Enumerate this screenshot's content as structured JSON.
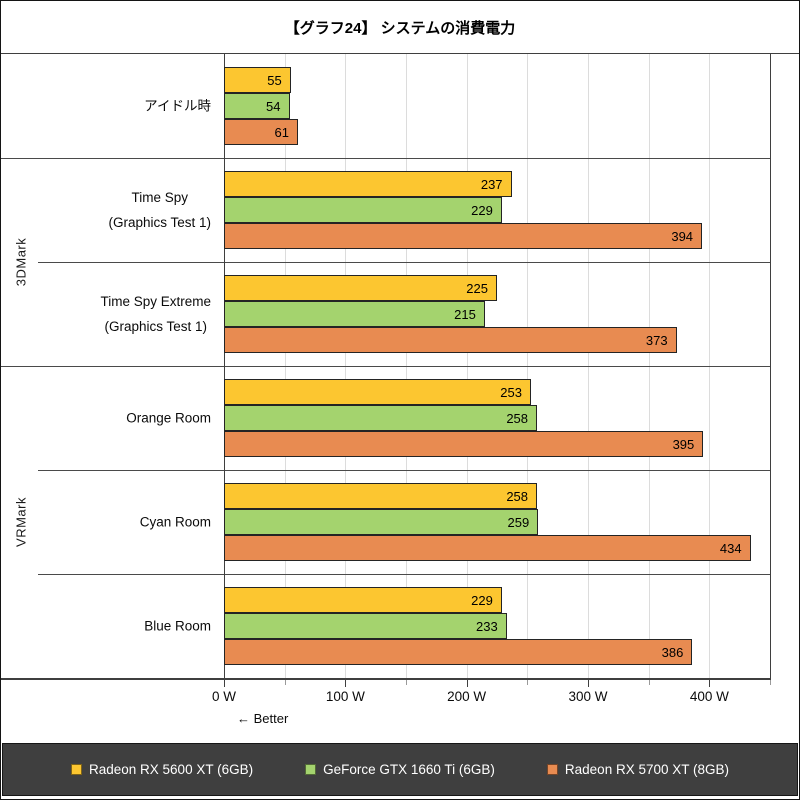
{
  "chart_data": {
    "type": "bar",
    "orientation": "horizontal",
    "title": "【グラフ24】 システムの消費電力",
    "categories": [
      "アイドル時",
      "Time Spy (Graphics Test 1)",
      "Time Spy Extreme (Graphics Test 1)",
      "Orange Room",
      "Cyan Room",
      "Blue Room"
    ],
    "category_label_lines": [
      [
        "アイドル時"
      ],
      [
        "Time Spy",
        "(Graphics Test 1)"
      ],
      [
        "Time Spy Extreme",
        "(Graphics Test 1)"
      ],
      [
        "Orange Room"
      ],
      [
        "Cyan Room"
      ],
      [
        "Blue Room"
      ]
    ],
    "category_groups": [
      {
        "label": "3DMark",
        "span": [
          1,
          2
        ]
      },
      {
        "label": "VRMark",
        "span": [
          3,
          5
        ]
      }
    ],
    "series": [
      {
        "name": "Radeon RX 5600 XT (6GB)",
        "slug": "radeon-rx-5600-xt",
        "color": "#FCC630",
        "values": [
          55,
          237,
          225,
          253,
          258,
          229
        ]
      },
      {
        "name": "GeForce GTX 1660 Ti (6GB)",
        "slug": "geforce-gtx-1660-ti",
        "color": "#A4D36E",
        "values": [
          54,
          229,
          215,
          258,
          259,
          233
        ]
      },
      {
        "name": "Radeon RX 5700 XT (8GB)",
        "slug": "radeon-rx-5700-xt",
        "color": "#E88B51",
        "values": [
          61,
          394,
          373,
          395,
          434,
          386
        ]
      }
    ],
    "xlim": [
      0,
      450
    ],
    "x_unit": "W",
    "xticks": [
      {
        "value": 0,
        "label": "0 W"
      },
      {
        "value": 100,
        "label": "100 W"
      },
      {
        "value": 200,
        "label": "200 W"
      },
      {
        "value": 300,
        "label": "300 W"
      },
      {
        "value": 400,
        "label": "400 W"
      }
    ],
    "minor_tick_values": [
      50,
      150,
      250,
      350,
      450
    ],
    "gridline_step": 50,
    "grid": true,
    "legend_position": "bottom",
    "better_label": "← Better",
    "colors": {
      "grid": "#dcdcdc",
      "axis": "#3f3f3f",
      "legend_bg": "#3f3f3f",
      "legend_text": "#ffffff",
      "bar_border": "#242424"
    }
  }
}
